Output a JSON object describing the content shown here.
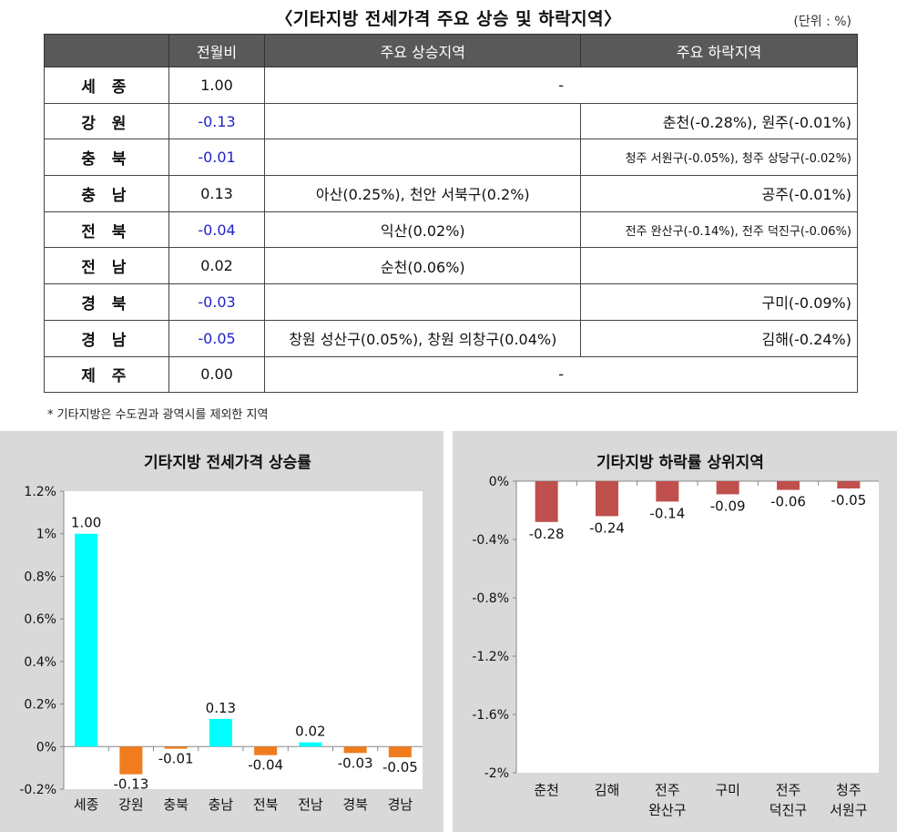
{
  "title": "〈기타지방 전세가격 주요 상승 및 하락지역〉",
  "unit": "(단위 : %)",
  "table": {
    "headers": [
      "",
      "전월비",
      "주요 상승지역",
      "주요 하락지역"
    ],
    "rows": [
      {
        "region": "세 종",
        "mom": "1.00",
        "neg": false,
        "merged": "-"
      },
      {
        "region": "강 원",
        "mom": "-0.13",
        "neg": true,
        "up": "",
        "down": "춘천(-0.28%), 원주(-0.01%)",
        "down_small": false
      },
      {
        "region": "충 북",
        "mom": "-0.01",
        "neg": true,
        "up": "",
        "down": "청주 서원구(-0.05%), 청주 상당구(-0.02%)",
        "down_small": true
      },
      {
        "region": "충 남",
        "mom": "0.13",
        "neg": false,
        "up": "아산(0.25%), 천안 서북구(0.2%)",
        "down": "공주(-0.01%)",
        "down_small": false
      },
      {
        "region": "전 북",
        "mom": "-0.04",
        "neg": true,
        "up": "익산(0.02%)",
        "down": "전주 완산구(-0.14%), 전주 덕진구(-0.06%)",
        "down_small": true
      },
      {
        "region": "전 남",
        "mom": "0.02",
        "neg": false,
        "up": "순천(0.06%)",
        "down": "",
        "down_small": false
      },
      {
        "region": "경 북",
        "mom": "-0.03",
        "neg": true,
        "up": "",
        "down": "구미(-0.09%)",
        "down_small": false
      },
      {
        "region": "경 남",
        "mom": "-0.05",
        "neg": true,
        "up": "창원 성산구(0.05%), 창원 의창구(0.04%)",
        "down": "김해(-0.24%)",
        "down_small": false
      },
      {
        "region": "제 주",
        "mom": "0.00",
        "neg": false,
        "merged": "-"
      }
    ]
  },
  "footnote": "* 기타지방은 수도권과 광역시를 제외한 지역",
  "chart_data": [
    {
      "type": "bar",
      "title": "기타지방 전세가격 상승률",
      "categories": [
        "세종",
        "강원",
        "충북",
        "충남",
        "전북",
        "전남",
        "경북",
        "경남"
      ],
      "values": [
        1.0,
        -0.13,
        -0.01,
        0.13,
        -0.04,
        0.02,
        -0.03,
        -0.05
      ],
      "value_labels": [
        "1.00",
        "-0.13",
        "-0.01",
        "0.13",
        "-0.04",
        "0.02",
        "-0.03",
        "-0.05"
      ],
      "yticks": [
        1.2,
        1.0,
        0.8,
        0.6,
        0.4,
        0.2,
        0,
        -0.2
      ],
      "ytick_labels": [
        "1.2%",
        "1%",
        "0.8%",
        "0.6%",
        "0.4%",
        "0.2%",
        "0%",
        "-0.2%"
      ],
      "ylim": [
        -0.2,
        1.2
      ],
      "colors": {
        "positive": "#00ffff",
        "negative": "#f07c1e"
      }
    },
    {
      "type": "bar",
      "title": "기타지방 하락률 상위지역",
      "categories": [
        [
          "춘천"
        ],
        [
          "김해"
        ],
        [
          "전주",
          "완산구"
        ],
        [
          "구미"
        ],
        [
          "전주",
          "덕진구"
        ],
        [
          "청주",
          "서원구"
        ]
      ],
      "values": [
        -0.28,
        -0.24,
        -0.14,
        -0.09,
        -0.06,
        -0.05
      ],
      "value_labels": [
        "-0.28",
        "-0.24",
        "-0.14",
        "-0.09",
        "-0.06",
        "-0.05"
      ],
      "yticks": [
        0,
        -0.4,
        -0.8,
        -1.2,
        -1.6,
        -2.0
      ],
      "ytick_labels": [
        "0%",
        "-0.4%",
        "-0.8%",
        "-1.2%",
        "-1.6%",
        "-2%"
      ],
      "ylim": [
        -2.0,
        0
      ],
      "colors": {
        "bar": "#c0504d"
      }
    }
  ]
}
